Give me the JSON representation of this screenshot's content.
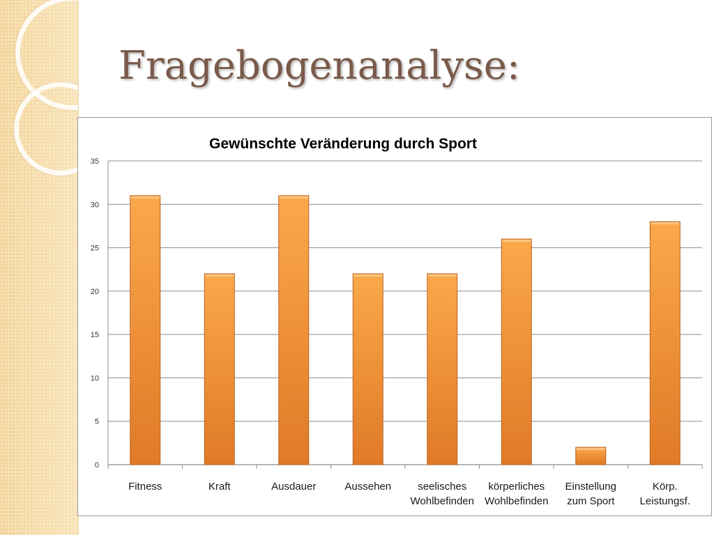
{
  "slide": {
    "title": "Fragebogenanalyse:"
  },
  "colors": {
    "bar_top": "#fba84a",
    "bar_bottom": "#e07a27",
    "bar_edge": "#b96420",
    "gridline": "#8c8c8c",
    "title_text": "#7a5a4a",
    "side_band": "#f6dfae"
  },
  "chart_data": {
    "type": "bar",
    "title": "Gewünschte Veränderung durch Sport",
    "xlabel": "",
    "ylabel": "",
    "categories": [
      [
        "Fitness"
      ],
      [
        "Kraft"
      ],
      [
        "Ausdauer"
      ],
      [
        "Aussehen"
      ],
      [
        "seelisches",
        "Wohlbefinden"
      ],
      [
        "körperliches",
        "Wohlbefinden"
      ],
      [
        "Einstellung",
        "zum Sport"
      ],
      [
        "Körp.",
        "Leistungsf."
      ]
    ],
    "values": [
      31,
      22,
      31,
      22,
      22,
      26,
      2,
      28
    ],
    "ylim": [
      0,
      35
    ],
    "yticks": [
      0,
      5,
      10,
      15,
      20,
      25,
      30,
      35
    ],
    "grid": true,
    "legend": "none"
  }
}
